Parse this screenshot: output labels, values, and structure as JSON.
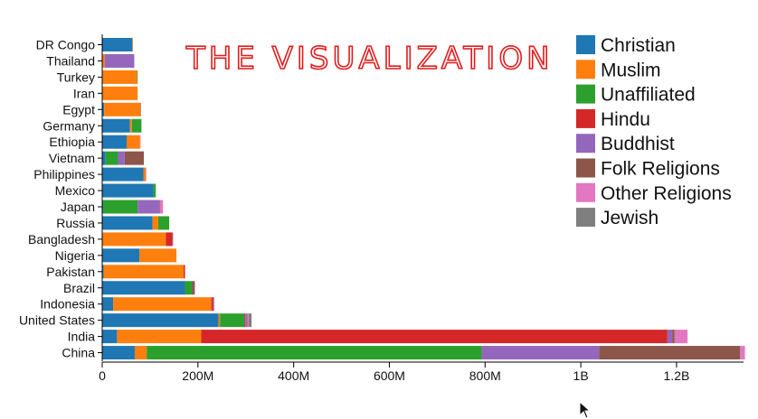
{
  "annotation": {
    "text": "THE VISUALIZATION",
    "color": "#e21b1b"
  },
  "chart_data": {
    "type": "bar",
    "orientation": "horizontal",
    "stacked": true,
    "title": "",
    "xlabel": "",
    "ylabel": "",
    "xlim": [
      0,
      1340000000
    ],
    "x_ticks": [
      {
        "value": 0,
        "label": "0"
      },
      {
        "value": 200000000,
        "label": "200M"
      },
      {
        "value": 400000000,
        "label": "400M"
      },
      {
        "value": 600000000,
        "label": "600M"
      },
      {
        "value": 800000000,
        "label": "800M"
      },
      {
        "value": 1000000000,
        "label": "1B"
      },
      {
        "value": 1200000000,
        "label": "1.2B"
      }
    ],
    "grid": false,
    "legend_position": "top-right",
    "categories": [
      "DR Congo",
      "Thailand",
      "Turkey",
      "Iran",
      "Egypt",
      "Germany",
      "Ethiopia",
      "Vietnam",
      "Philippines",
      "Mexico",
      "Japan",
      "Russia",
      "Bangladesh",
      "Nigeria",
      "Pakistan",
      "Brazil",
      "Indonesia",
      "United States",
      "India",
      "China"
    ],
    "series": [
      {
        "name": "Christian",
        "color": "#1f77b4",
        "values": [
          63000000,
          1000000,
          0,
          0,
          4000000,
          58000000,
          51000000,
          7000000,
          86000000,
          107000000,
          2000000,
          105000000,
          0,
          78000000,
          3000000,
          173000000,
          23000000,
          243000000,
          31000000,
          68000000
        ]
      },
      {
        "name": "Muslim",
        "color": "#ff7f0e",
        "values": [
          1000000,
          4000000,
          73000000,
          74000000,
          76000000,
          4000000,
          28000000,
          0,
          5000000,
          0,
          0,
          12000000,
          133000000,
          77000000,
          167000000,
          0,
          205000000,
          3000000,
          176000000,
          25000000
        ]
      },
      {
        "name": "Unaffiliated",
        "color": "#2ca02c",
        "values": [
          0,
          0,
          1000000,
          0,
          0,
          20000000,
          0,
          26000000,
          0,
          5000000,
          72000000,
          23000000,
          0,
          0,
          0,
          15000000,
          0,
          51000000,
          0,
          700000000
        ]
      },
      {
        "name": "Hindu",
        "color": "#d62728",
        "values": [
          0,
          0,
          0,
          0,
          0,
          0,
          0,
          0,
          0,
          0,
          0,
          0,
          14000000,
          0,
          3000000,
          0,
          4000000,
          2000000,
          974000000,
          0
        ]
      },
      {
        "name": "Buddhist",
        "color": "#9467bd",
        "values": [
          0,
          62000000,
          0,
          0,
          0,
          0,
          0,
          14000000,
          0,
          0,
          45000000,
          0,
          1000000,
          0,
          0,
          0,
          2000000,
          4000000,
          10000000,
          245000000
        ]
      },
      {
        "name": "Folk Religions",
        "color": "#8c564b",
        "values": [
          0,
          0,
          0,
          0,
          0,
          0,
          0,
          40000000,
          0,
          0,
          1000000,
          0,
          0,
          0,
          0,
          5000000,
          0,
          1000000,
          5000000,
          295000000
        ]
      },
      {
        "name": "Other Religions",
        "color": "#e377c2",
        "values": [
          0,
          0,
          0,
          0,
          0,
          0,
          1000000,
          0,
          1000000,
          0,
          7000000,
          0,
          0,
          0,
          0,
          1000000,
          0,
          2000000,
          27000000,
          10000000
        ]
      },
      {
        "name": "Jewish",
        "color": "#7f7f7f",
        "values": [
          0,
          0,
          0,
          0,
          1000000,
          0,
          0,
          0,
          0,
          0,
          0,
          0,
          0,
          0,
          0,
          0,
          0,
          6000000,
          0,
          0
        ]
      }
    ]
  }
}
